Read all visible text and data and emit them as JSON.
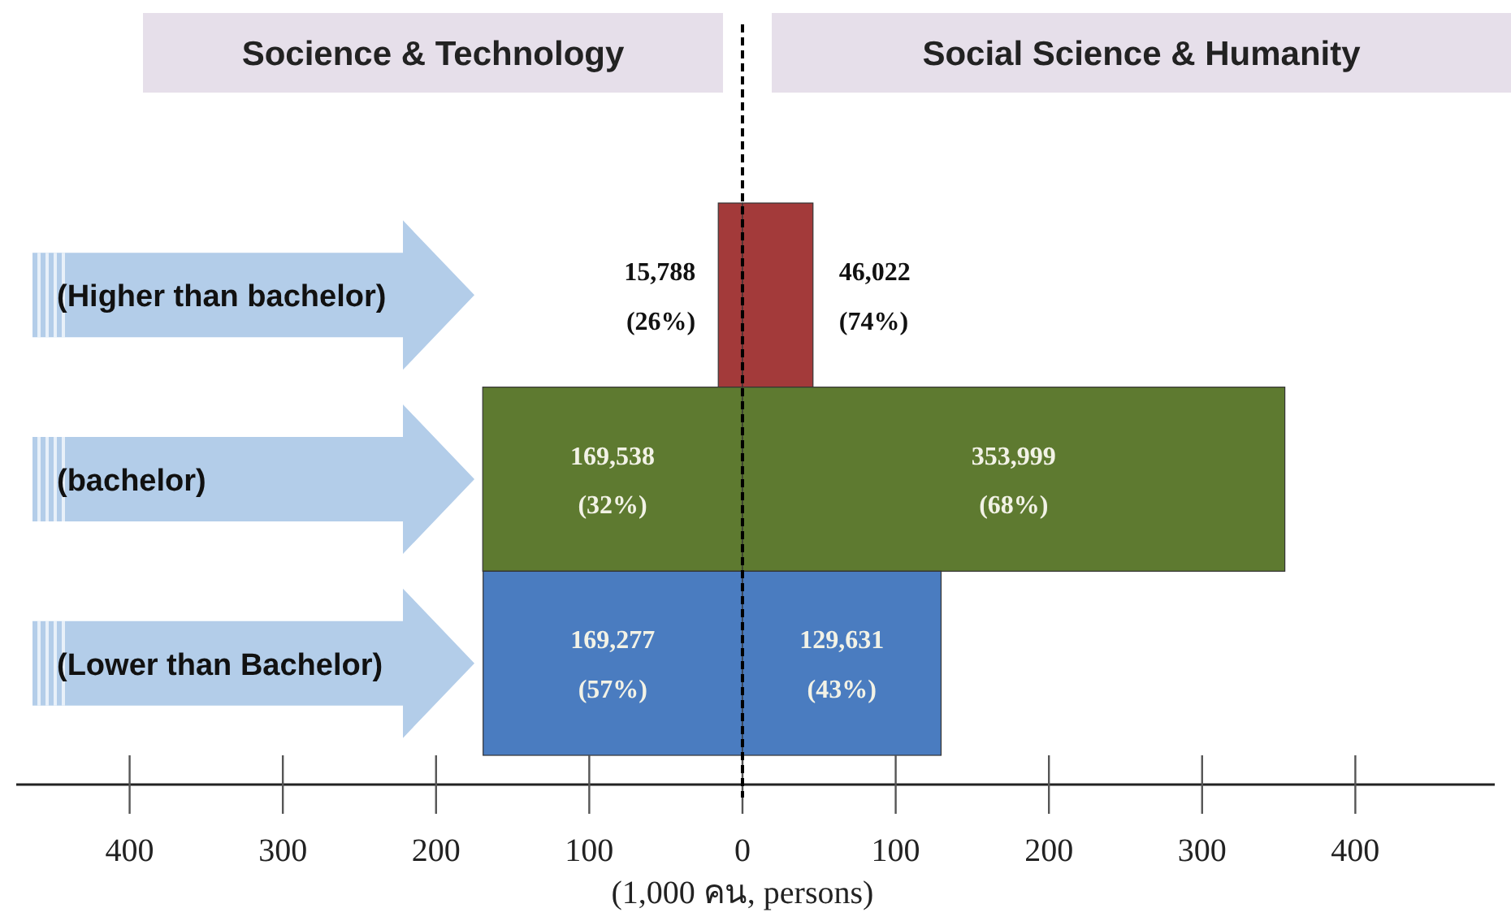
{
  "chart_data": [
    {
      "type": "bar",
      "orientation": "horizontal",
      "title": "Socience & Technology",
      "categories": [
        "(Higher than bachelor)",
        "(bachelor)",
        "(Lower than Bachelor)"
      ],
      "colors": [
        "#a33a3a",
        "#5e7a30",
        "#4a7cc0"
      ],
      "values": [
        15.788,
        169.538,
        169.277
      ],
      "annotations": [
        "15,788\n(26%)",
        "169,538\n(32%)",
        "169,277\n(57%)"
      ],
      "xlim": [
        474,
        0
      ],
      "xticks": [
        400,
        300,
        200,
        100
      ],
      "grid": false
    },
    {
      "type": "bar",
      "orientation": "horizontal",
      "title": "Social Science & Humanity",
      "tick_labels": "x",
      "categories": [
        null,
        null,
        null
      ],
      "colors": [
        "#a33a3a",
        "#5e7a30",
        "#4a7cc0"
      ],
      "values": [
        46.022,
        353.999,
        129.631
      ],
      "annotations": [
        "46,022\n(74%)",
        "353,999\n(68%)",
        "129,631\n(43%)"
      ],
      "xlabel": "(1,000 คน, persons)",
      "xlim": [
        0,
        491
      ],
      "xticks": [
        0,
        100,
        200,
        300,
        400
      ],
      "ref_lines": [
        {
          "axis": "x",
          "value": 0,
          "line_style": "dashed",
          "color": "#000000"
        }
      ],
      "grid": false
    }
  ]
}
